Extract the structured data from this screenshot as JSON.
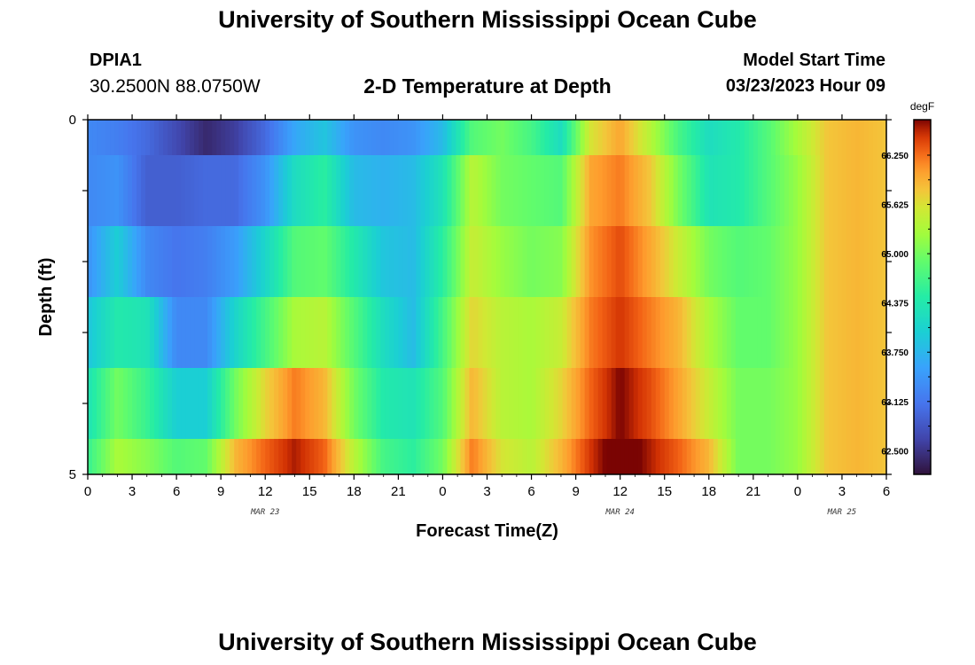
{
  "header": {
    "title": "University of Southern Mississippi Ocean Cube",
    "station": "DPIA1",
    "coords": "30.2500N  88.0750W",
    "subtitle": "2-D Temperature at Depth",
    "model_label": "Model Start Time",
    "model_time": "03/23/2023 Hour 09"
  },
  "footer": {
    "title": "University of Southern Mississippi Ocean Cube"
  },
  "chart_data": {
    "type": "heatmap",
    "xlabel": "Forecast Time(Z)",
    "ylabel": "Depth (ft)",
    "x_tick_labels": [
      "0",
      "3",
      "6",
      "9",
      "12",
      "15",
      "18",
      "21",
      "0",
      "3",
      "6",
      "9",
      "12",
      "15",
      "18",
      "21",
      "0",
      "3",
      "6"
    ],
    "x_date_labels": [
      {
        "hour_index": 12,
        "label": "MAR 23"
      },
      {
        "hour_index": 36,
        "label": "MAR 24"
      },
      {
        "hour_index": 51,
        "label": "MAR 25"
      }
    ],
    "x_range_hours": [
      0,
      54
    ],
    "y_tick_labels": [
      "0",
      "5"
    ],
    "ylim": [
      0,
      5
    ],
    "colorbar": {
      "unit": "degF",
      "min": 62.2,
      "max": 66.7,
      "tick_labels": [
        "62.500",
        "63.125",
        "63.750",
        "64.375",
        "65.000",
        "65.625",
        "66.250"
      ],
      "tick_values": [
        62.5,
        63.125,
        63.75,
        64.375,
        65.0,
        65.625,
        66.25
      ]
    },
    "depth_rows_ft": [
      0,
      1,
      2,
      3,
      4,
      5
    ],
    "keyframe_hours": [
      0,
      2,
      4,
      6,
      8,
      10,
      12,
      14,
      16,
      18,
      20,
      22,
      24,
      26,
      28,
      30,
      32,
      34,
      36,
      38,
      40,
      42,
      44,
      46,
      48,
      50,
      52,
      54
    ],
    "temperature_degF": [
      [
        63.3,
        63.2,
        63.0,
        62.7,
        62.4,
        62.6,
        63.0,
        63.6,
        63.9,
        63.4,
        63.3,
        63.4,
        63.8,
        64.8,
        65.0,
        64.7,
        64.2,
        65.6,
        66.0,
        65.4,
        64.7,
        64.2,
        64.4,
        64.8,
        65.3,
        65.8,
        65.9,
        65.8
      ],
      [
        63.3,
        63.4,
        62.9,
        62.9,
        63.0,
        63.0,
        63.4,
        64.2,
        64.5,
        63.8,
        63.7,
        63.8,
        64.3,
        65.4,
        65.0,
        64.9,
        64.8,
        66.0,
        66.2,
        65.8,
        65.0,
        64.3,
        64.4,
        64.8,
        65.2,
        65.8,
        65.9,
        65.8
      ],
      [
        63.4,
        64.0,
        63.3,
        63.1,
        63.2,
        63.5,
        64.1,
        64.8,
        64.9,
        64.4,
        63.9,
        63.8,
        64.5,
        65.5,
        65.2,
        65.0,
        65.1,
        66.1,
        66.4,
        66.0,
        65.5,
        65.0,
        64.8,
        64.9,
        65.2,
        65.8,
        65.9,
        65.8
      ],
      [
        63.9,
        64.4,
        64.3,
        63.3,
        63.3,
        64.1,
        64.7,
        65.3,
        65.4,
        64.8,
        64.2,
        63.8,
        64.7,
        65.7,
        65.4,
        65.3,
        65.5,
        66.2,
        66.5,
        66.2,
        65.9,
        65.3,
        64.9,
        64.9,
        65.2,
        65.8,
        65.9,
        65.8
      ],
      [
        64.3,
        65.0,
        64.6,
        64.0,
        64.0,
        65.0,
        65.7,
        66.2,
        65.9,
        65.0,
        64.4,
        64.3,
        64.8,
        65.9,
        65.4,
        65.3,
        65.7,
        66.3,
        66.7,
        66.4,
        66.0,
        65.5,
        65.0,
        65.0,
        65.2,
        65.8,
        65.9,
        65.8
      ],
      [
        64.6,
        65.3,
        65.1,
        64.8,
        64.9,
        65.9,
        66.3,
        66.6,
        66.3,
        65.4,
        64.7,
        64.5,
        65.0,
        66.2,
        65.6,
        65.4,
        65.9,
        66.5,
        66.9,
        66.6,
        66.3,
        65.9,
        65.0,
        65.0,
        65.2,
        65.8,
        65.9,
        65.8
      ]
    ]
  }
}
